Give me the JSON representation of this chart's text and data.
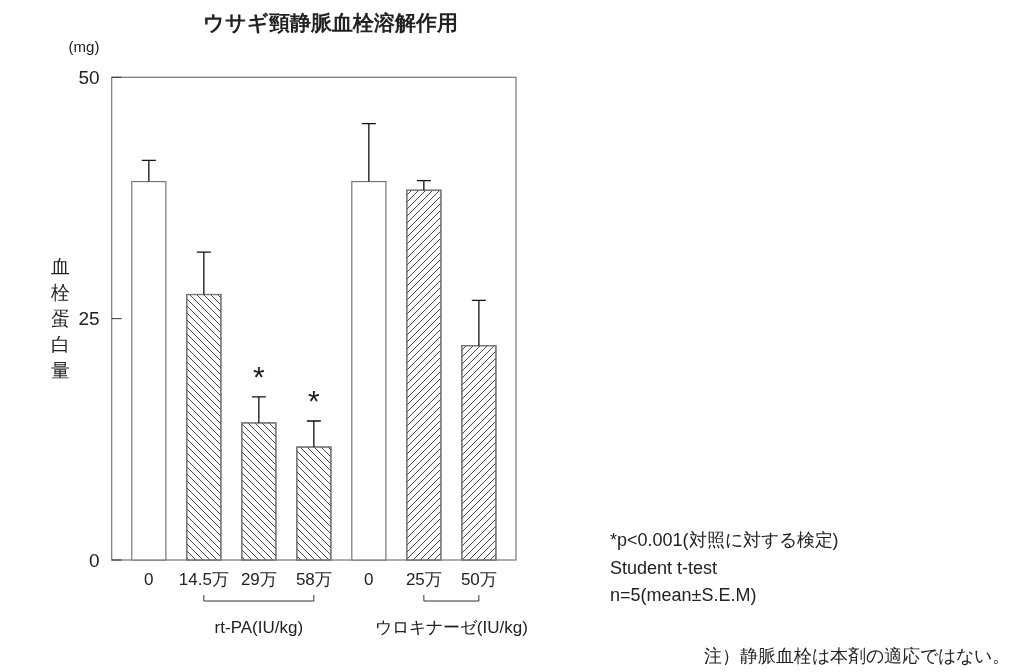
{
  "chart_data": {
    "type": "bar",
    "title": "ウサギ頸静脈血栓溶解作用",
    "ylabel": "血栓蛋白量",
    "categories": [
      "0",
      "14.5万",
      "29万",
      "58万",
      "0",
      "25万",
      "50万"
    ],
    "series": [
      {
        "color": "#ffffff",
        "values": [
          39.2,
          null,
          null,
          null,
          39.2,
          null,
          null
        ],
        "errors": [
          [
            39.2,
            41.4
          ],
          null,
          null,
          null,
          [
            39.2,
            45.2
          ],
          null,
          null
        ]
      },
      {
        "color": "#ffffff",
        "values": [
          null,
          27.5,
          14.2,
          11.7,
          null,
          null,
          null
        ],
        "errors": [
          null,
          [
            27.5,
            31.9
          ],
          [
            14.2,
            16.9
          ],
          [
            11.7,
            14.4
          ],
          null,
          null,
          null
        ]
      },
      {
        "color": "#ffffff",
        "values": [
          null,
          null,
          null,
          null,
          null,
          38.3,
          22.2
        ],
        "errors": [
          null,
          null,
          null,
          null,
          null,
          [
            38.3,
            39.3
          ],
          [
            22.2,
            26.9
          ]
        ]
      }
    ],
    "ylim": [
      0,
      50
    ],
    "yticks": [
      0,
      25,
      50
    ],
    "grid": false,
    "annotations": [
      {
        "text": "*",
        "x": "29万",
        "y": 16.9
      },
      {
        "text": "*",
        "x": "58万",
        "y": 14.4
      },
      "(mg)",
      "rt-PA(IU/kg)",
      "ウロキナーゼ(IU/kg)",
      "*p<0.001(対照に対する検定)",
      "Student t-test",
      "n=5(mean±S.E.M)",
      "注）静脈血栓は本剤の適応ではない。"
    ]
  }
}
